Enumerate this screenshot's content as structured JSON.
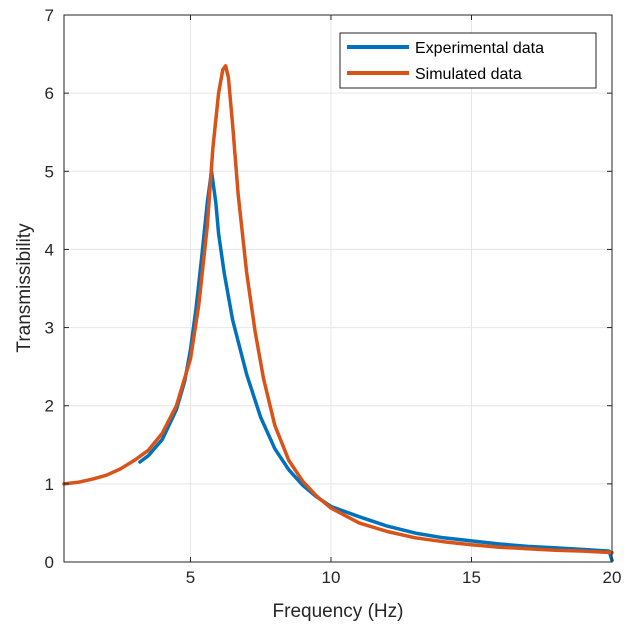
{
  "chart_data": {
    "type": "line",
    "title": "",
    "xlabel": "Frequency (Hz)",
    "ylabel": "Transmissibility",
    "xlim": [
      0.5,
      20
    ],
    "ylim": [
      0,
      7
    ],
    "xticks": [
      5,
      10,
      15,
      20
    ],
    "yticks": [
      0,
      1,
      2,
      3,
      4,
      5,
      6,
      7
    ],
    "xtick_labels": [
      "5",
      "10",
      "15",
      "20"
    ],
    "ytick_labels": [
      "0",
      "1",
      "2",
      "3",
      "4",
      "5",
      "6",
      "7"
    ],
    "grid": true,
    "legend_position": "top-right",
    "series": [
      {
        "name": "Experimental data",
        "color": "#0072BD",
        "x": [
          3.2,
          3.5,
          4.0,
          4.5,
          4.8,
          5.0,
          5.2,
          5.4,
          5.6,
          5.75,
          5.9,
          6.0,
          6.2,
          6.5,
          7.0,
          7.5,
          8.0,
          8.5,
          9.0,
          9.5,
          10.0,
          11.0,
          12.0,
          13.0,
          14.0,
          15.0,
          16.0,
          17.0,
          18.0,
          19.0,
          19.9,
          20.0
        ],
        "y": [
          1.28,
          1.36,
          1.57,
          1.95,
          2.32,
          2.72,
          3.25,
          3.9,
          4.6,
          5.0,
          4.6,
          4.2,
          3.7,
          3.1,
          2.4,
          1.85,
          1.45,
          1.18,
          0.98,
          0.83,
          0.71,
          0.58,
          0.46,
          0.37,
          0.31,
          0.27,
          0.23,
          0.2,
          0.18,
          0.16,
          0.14,
          0.02
        ]
      },
      {
        "name": "Simulated data",
        "color": "#D95319",
        "x": [
          0.5,
          1.0,
          1.5,
          2.0,
          2.5,
          3.0,
          3.5,
          4.0,
          4.5,
          5.0,
          5.3,
          5.6,
          5.8,
          6.0,
          6.15,
          6.25,
          6.35,
          6.5,
          6.7,
          7.0,
          7.3,
          7.6,
          8.0,
          8.5,
          9.0,
          9.5,
          10.0,
          11.0,
          12.0,
          13.0,
          14.0,
          15.0,
          16.0,
          17.0,
          18.0,
          19.0,
          20.0
        ],
        "y": [
          1.0,
          1.02,
          1.06,
          1.11,
          1.19,
          1.3,
          1.43,
          1.65,
          2.0,
          2.6,
          3.3,
          4.3,
          5.3,
          6.0,
          6.3,
          6.35,
          6.2,
          5.6,
          4.7,
          3.7,
          2.95,
          2.35,
          1.75,
          1.3,
          1.03,
          0.84,
          0.69,
          0.5,
          0.39,
          0.31,
          0.26,
          0.22,
          0.19,
          0.17,
          0.15,
          0.14,
          0.12
        ]
      }
    ]
  }
}
